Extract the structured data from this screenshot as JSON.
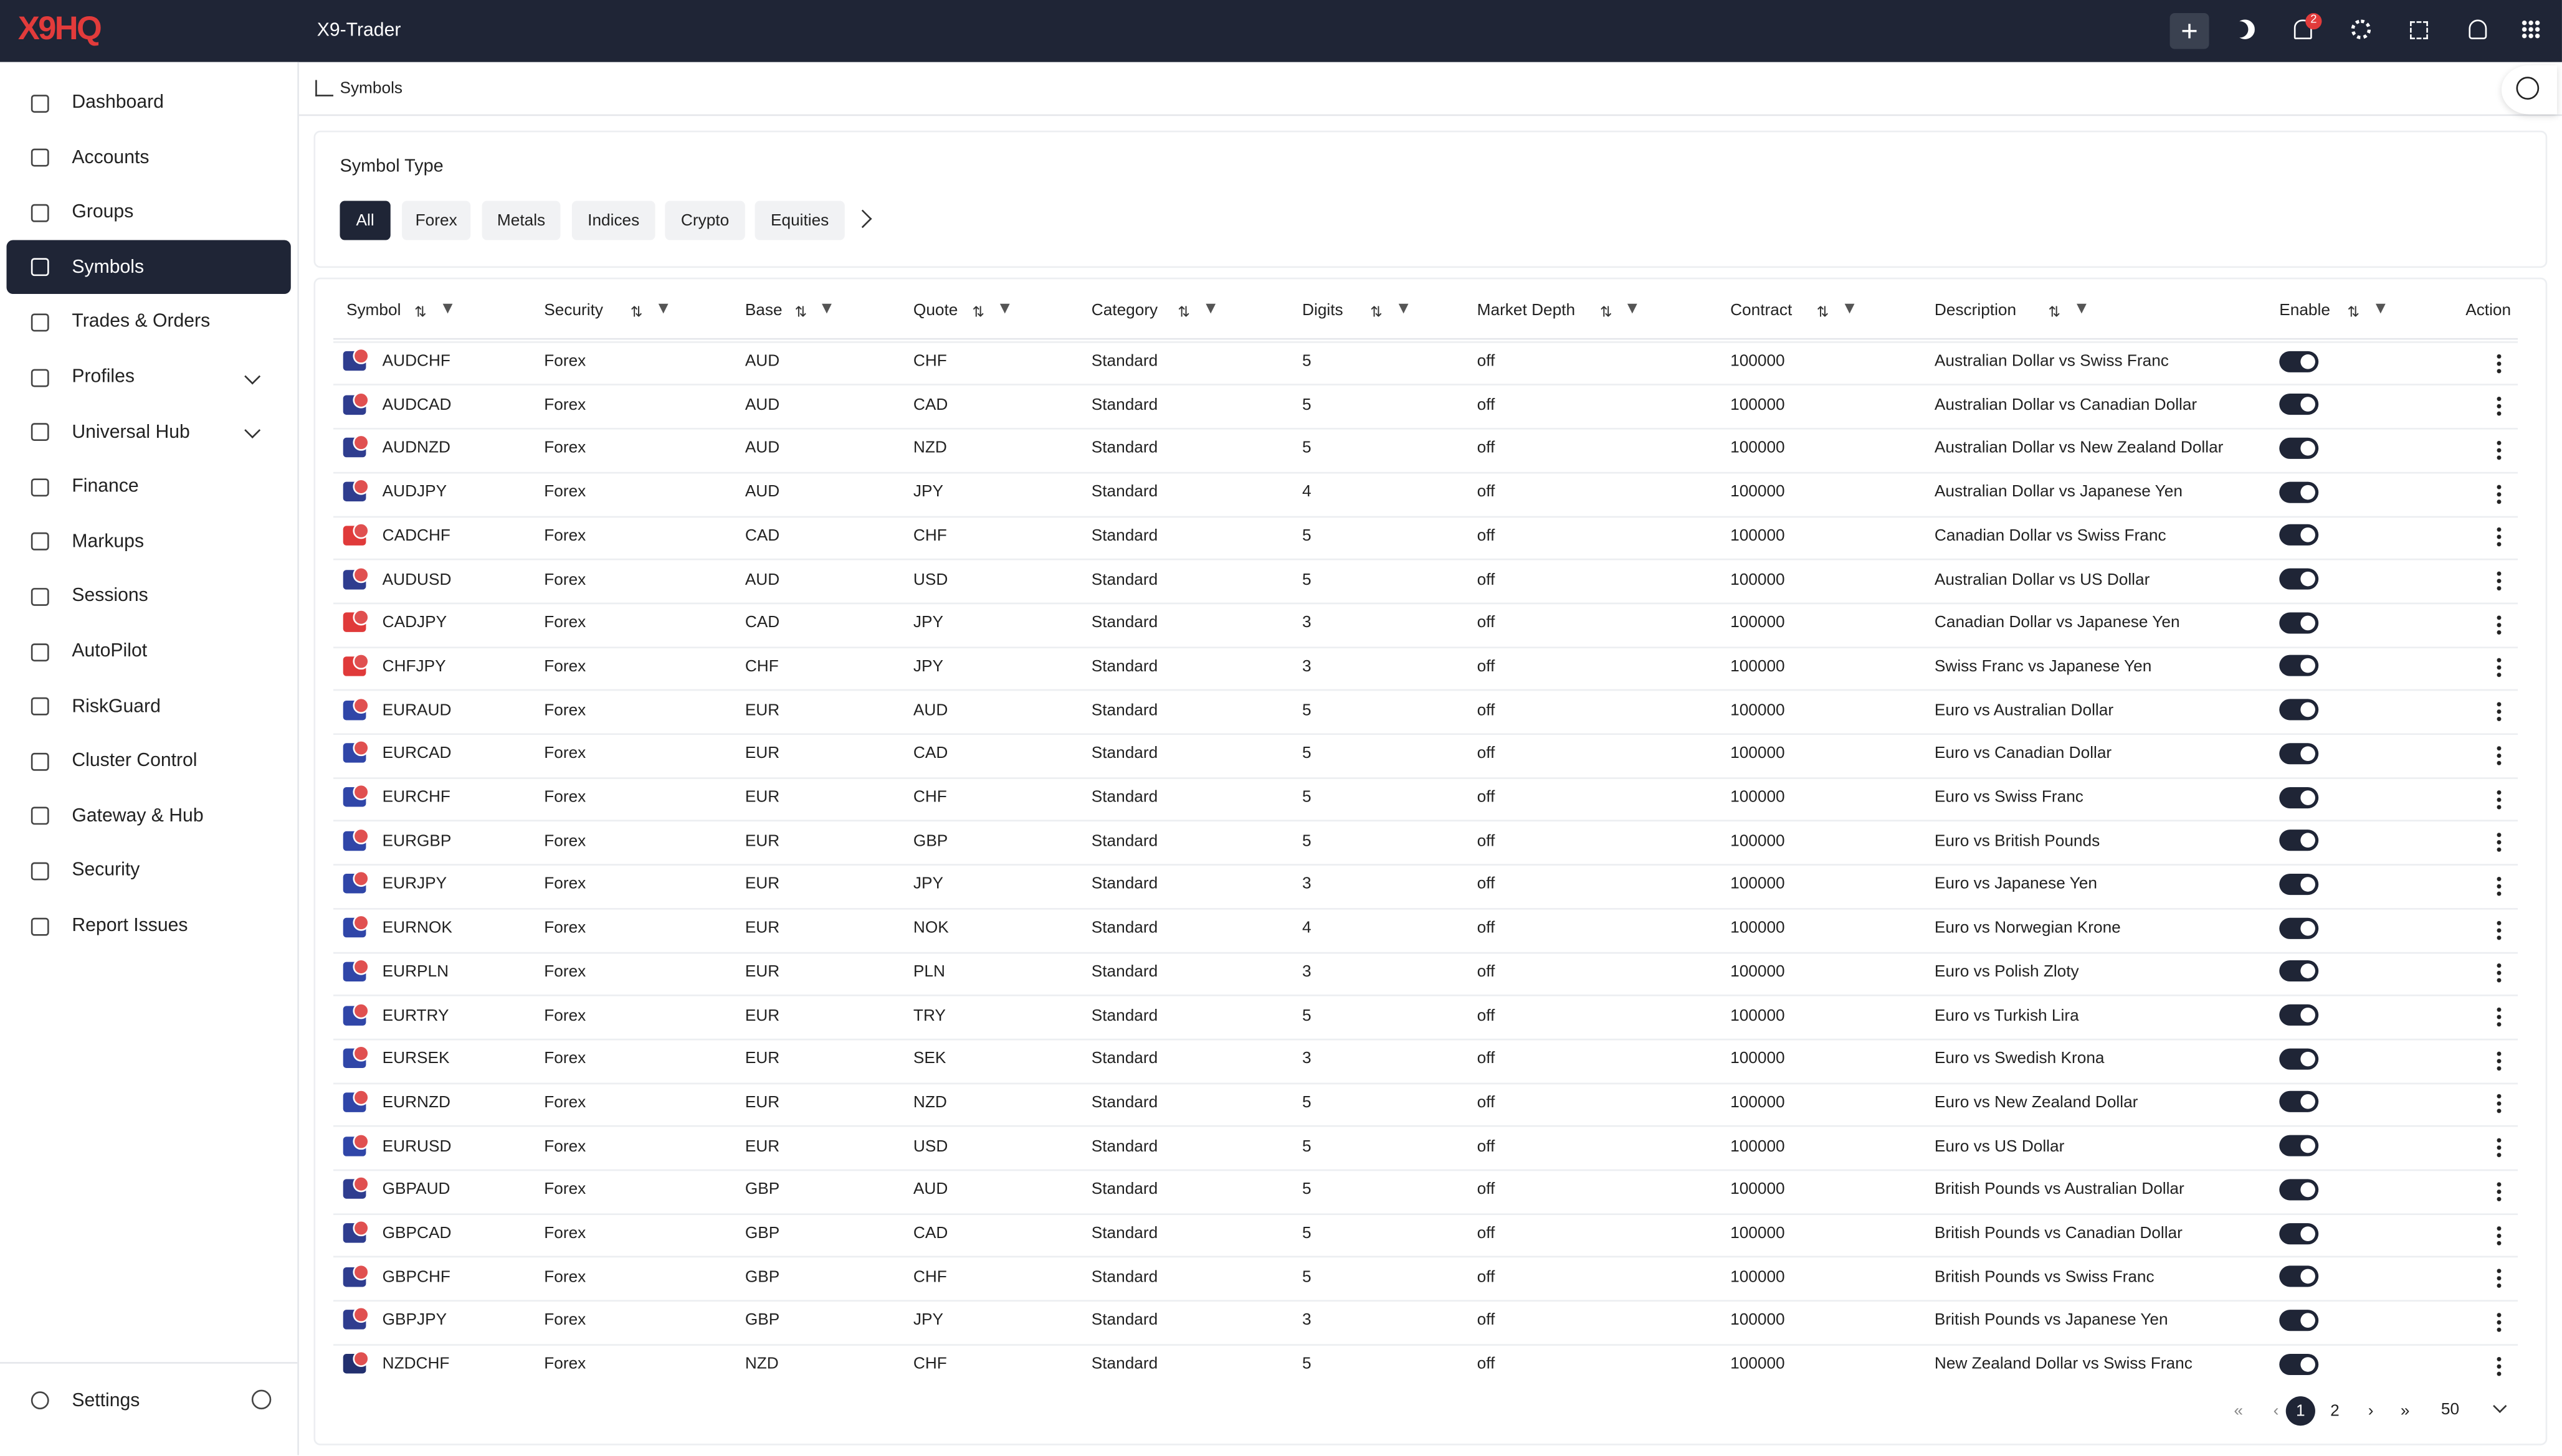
{
  "header": {
    "logo": "X9HQ",
    "app_name": "X9-Trader",
    "notification_count": "2"
  },
  "sidebar": {
    "items": [
      "Dashboard",
      "Accounts",
      "Groups",
      "Symbols",
      "Trades & Orders",
      "Profiles",
      "Universal Hub",
      "Finance",
      "Markups",
      "Sessions",
      "AutoPilot",
      "RiskGuard",
      "Cluster Control",
      "Gateway & Hub",
      "Security",
      "Report Issues"
    ],
    "settings": "Settings"
  },
  "breadcrumb": "Symbols",
  "filter": {
    "title": "Symbol Type",
    "tabs": [
      "All",
      "Forex",
      "Metals",
      "Indices",
      "Crypto",
      "Equities"
    ]
  },
  "table": {
    "columns": [
      "Symbol",
      "Security",
      "Base",
      "Quote",
      "Category",
      "Digits",
      "Market Depth",
      "Contract",
      "Description",
      "Enable",
      "Action"
    ],
    "rows": [
      [
        "AUDCHF",
        "Forex",
        "AUD",
        "CHF",
        "Standard",
        5,
        "off",
        100000,
        "Australian Dollar vs Swiss Franc"
      ],
      [
        "AUDCAD",
        "Forex",
        "AUD",
        "CAD",
        "Standard",
        5,
        "off",
        100000,
        "Australian Dollar vs Canadian Dollar"
      ],
      [
        "AUDNZD",
        "Forex",
        "AUD",
        "NZD",
        "Standard",
        5,
        "off",
        100000,
        "Australian Dollar vs New Zealand Dollar"
      ],
      [
        "AUDJPY",
        "Forex",
        "AUD",
        "JPY",
        "Standard",
        4,
        "off",
        100000,
        "Australian Dollar vs Japanese Yen"
      ],
      [
        "CADCHF",
        "Forex",
        "CAD",
        "CHF",
        "Standard",
        5,
        "off",
        100000,
        "Canadian Dollar vs Swiss Franc"
      ],
      [
        "AUDUSD",
        "Forex",
        "AUD",
        "USD",
        "Standard",
        5,
        "off",
        100000,
        "Australian Dollar vs US Dollar"
      ],
      [
        "CADJPY",
        "Forex",
        "CAD",
        "JPY",
        "Standard",
        3,
        "off",
        100000,
        "Canadian Dollar vs Japanese Yen"
      ],
      [
        "CHFJPY",
        "Forex",
        "CHF",
        "JPY",
        "Standard",
        3,
        "off",
        100000,
        "Swiss Franc vs Japanese Yen"
      ],
      [
        "EURAUD",
        "Forex",
        "EUR",
        "AUD",
        "Standard",
        5,
        "off",
        100000,
        "Euro vs Australian Dollar"
      ],
      [
        "EURCAD",
        "Forex",
        "EUR",
        "CAD",
        "Standard",
        5,
        "off",
        100000,
        "Euro vs Canadian Dollar"
      ],
      [
        "EURCHF",
        "Forex",
        "EUR",
        "CHF",
        "Standard",
        5,
        "off",
        100000,
        "Euro vs Swiss Franc"
      ],
      [
        "EURGBP",
        "Forex",
        "EUR",
        "GBP",
        "Standard",
        5,
        "off",
        100000,
        "Euro vs British Pounds"
      ],
      [
        "EURJPY",
        "Forex",
        "EUR",
        "JPY",
        "Standard",
        3,
        "off",
        100000,
        "Euro vs Japanese Yen"
      ],
      [
        "EURNOK",
        "Forex",
        "EUR",
        "NOK",
        "Standard",
        4,
        "off",
        100000,
        "Euro vs Norwegian Krone"
      ],
      [
        "EURPLN",
        "Forex",
        "EUR",
        "PLN",
        "Standard",
        3,
        "off",
        100000,
        "Euro vs Polish Zloty"
      ],
      [
        "EURTRY",
        "Forex",
        "EUR",
        "TRY",
        "Standard",
        5,
        "off",
        100000,
        "Euro vs Turkish Lira"
      ],
      [
        "EURSEK",
        "Forex",
        "EUR",
        "SEK",
        "Standard",
        3,
        "off",
        100000,
        "Euro vs Swedish Krona"
      ],
      [
        "EURNZD",
        "Forex",
        "EUR",
        "NZD",
        "Standard",
        5,
        "off",
        100000,
        "Euro vs New Zealand Dollar"
      ],
      [
        "EURUSD",
        "Forex",
        "EUR",
        "USD",
        "Standard",
        5,
        "off",
        100000,
        "Euro vs US Dollar"
      ],
      [
        "GBPAUD",
        "Forex",
        "GBP",
        "AUD",
        "Standard",
        5,
        "off",
        100000,
        "British Pounds vs Australian Dollar"
      ],
      [
        "GBPCAD",
        "Forex",
        "GBP",
        "CAD",
        "Standard",
        5,
        "off",
        100000,
        "British Pounds vs Canadian Dollar"
      ],
      [
        "GBPCHF",
        "Forex",
        "GBP",
        "CHF",
        "Standard",
        5,
        "off",
        100000,
        "British Pounds vs Swiss Franc"
      ],
      [
        "GBPJPY",
        "Forex",
        "GBP",
        "JPY",
        "Standard",
        3,
        "off",
        100000,
        "British Pounds vs Japanese Yen"
      ],
      [
        "NZDCHF",
        "Forex",
        "NZD",
        "CHF",
        "Standard",
        5,
        "off",
        100000,
        "New Zealand Dollar vs Swiss Franc"
      ]
    ]
  },
  "pagination": {
    "pages": [
      "1",
      "2"
    ],
    "page_size": "50"
  }
}
